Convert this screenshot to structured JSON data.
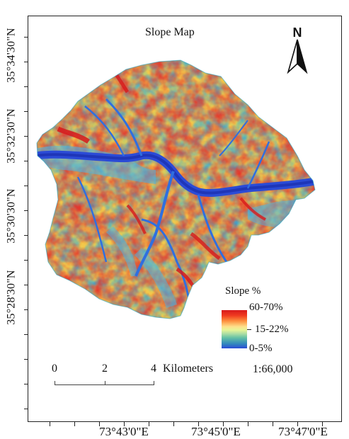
{
  "map": {
    "title": "Slope Map",
    "north_label": "N",
    "latitude_labels": [
      "35°34'30\"N",
      "35°32'30\"N",
      "35°30'30\"N",
      "35°28'30\"N"
    ],
    "longitude_labels": [
      "73°43'0\"E",
      "73°45'0\"E",
      "73°47'0\"E"
    ],
    "legend": {
      "title": "Slope %",
      "labels": [
        "60-70%",
        "15-22%",
        "0-5%"
      ],
      "colors": {
        "high": "#d7191c",
        "mid_high": "#fd8d3c",
        "mid": "#fee08b",
        "mid_low": "#abdda4",
        "low": "#2b83ba",
        "lowest": "#2b4bd6"
      }
    },
    "scale_bar": {
      "ticks": [
        "0",
        "2",
        "4"
      ],
      "unit": "Kilometers"
    },
    "ratio": "1:66,000",
    "colors": {
      "river": "#2b4bd6",
      "frame": "#222222"
    }
  }
}
